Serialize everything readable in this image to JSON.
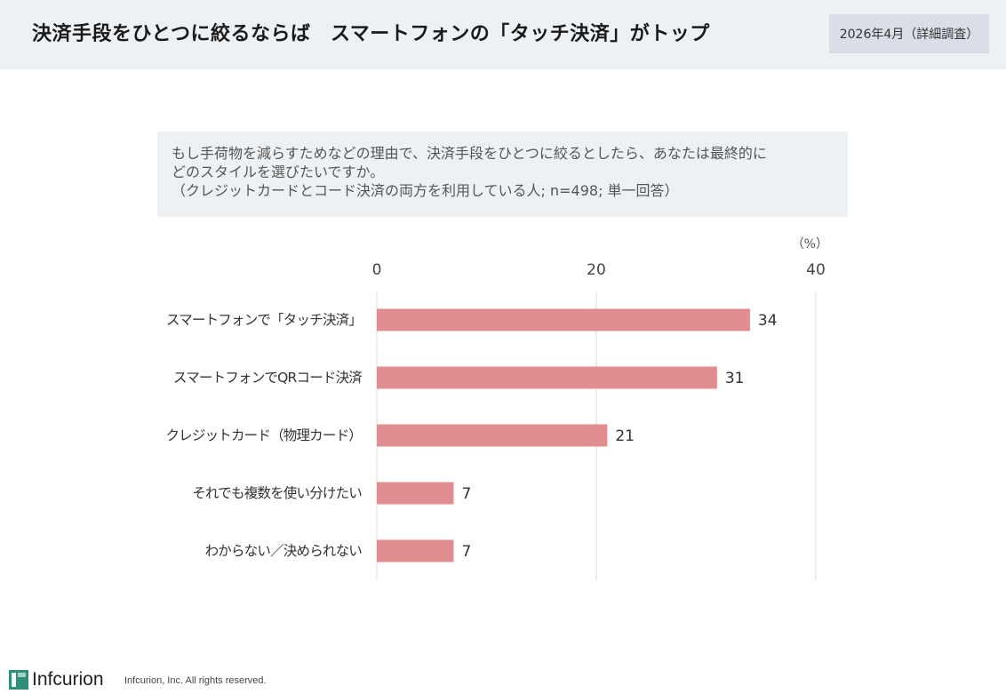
{
  "header": {
    "title": "決済手段をひとつに絞るならば　スマートフォンの「タッチ決済」がトップ",
    "date_badge": "2026年4月（詳細調査）"
  },
  "question": {
    "line1": "もし手荷物を減らすためなどの理由で、決済手段をひとつに絞るとしたら、あなたは最終的に",
    "line2": "どのスタイルを選びたいですか。",
    "line3": "（クレジットカードとコード決済の両方を利用している人; n=498; 単一回答）"
  },
  "chart_data": {
    "type": "bar",
    "orientation": "horizontal",
    "unit_label": "（%）",
    "categories": [
      "スマートフォンで「タッチ決済」",
      "スマートフォンでQRコード決済",
      "クレジットカード（物理カード）",
      "それでも複数を使い分けたい",
      "わからない／決められない"
    ],
    "values": [
      34,
      31,
      21,
      7,
      7
    ],
    "xlim": [
      0,
      40
    ],
    "ticks": [
      0,
      20,
      40
    ],
    "grid": true,
    "bar_color": "#e08e8f",
    "grid_color": "#d9d9d9"
  },
  "footer": {
    "logo_text": "Infcurion",
    "copyright": "Infcurion, Inc.  All rights reserved."
  }
}
